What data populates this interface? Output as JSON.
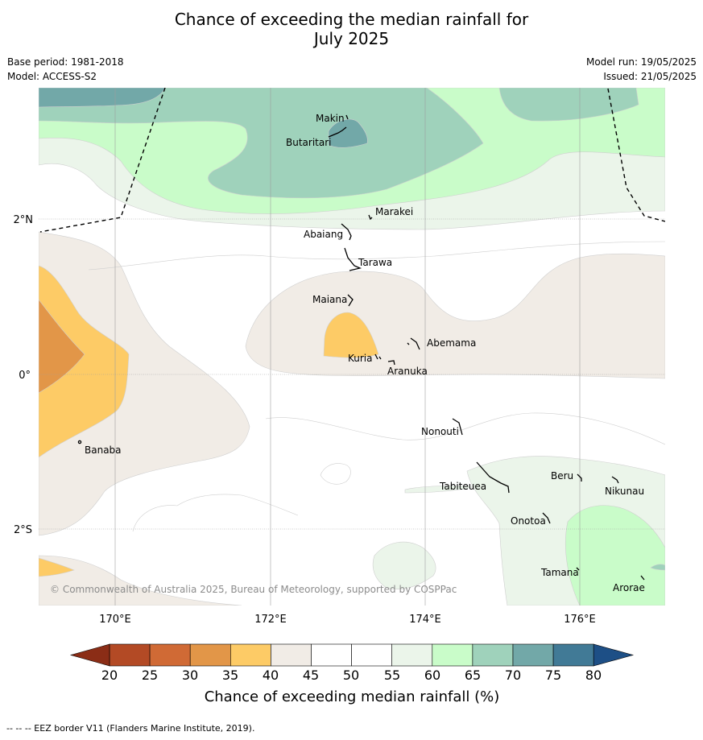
{
  "title_line1": "Chance of exceeding the median rainfall for",
  "title_line2": "July 2025",
  "base_period": "Base period: 1981-2018",
  "model": "Model: ACCESS-S2",
  "model_run": "Model run: 19/05/2025",
  "issued": "Issued: 21/05/2025",
  "copyright": "© Commonwealth of Australia 2025, Bureau of Meteorology, supported by COSPPac",
  "footer": "--  --  -- EEZ border V11 (Flanders Marine Institute, 2019).",
  "map": {
    "lon_labels": [
      "170°E",
      "172°E",
      "174°E",
      "176°E"
    ],
    "lat_labels": [
      "2°N",
      "0°",
      "2°S"
    ],
    "places": [
      {
        "name": "Makin"
      },
      {
        "name": "Butaritari"
      },
      {
        "name": "Marakei"
      },
      {
        "name": "Abaiang"
      },
      {
        "name": "Tarawa"
      },
      {
        "name": "Maiana"
      },
      {
        "name": "Abemama"
      },
      {
        "name": "Kuria"
      },
      {
        "name": "Aranuka"
      },
      {
        "name": "Nonouti"
      },
      {
        "name": "Banaba"
      },
      {
        "name": "Tabiteuea"
      },
      {
        "name": "Beru"
      },
      {
        "name": "Nikunau"
      },
      {
        "name": "Onotoa"
      },
      {
        "name": "Tamana"
      },
      {
        "name": "Arorae"
      }
    ]
  },
  "colorbar": {
    "label": "Chance of exceeding median rainfall (%)",
    "ticks": [
      "20",
      "25",
      "30",
      "35",
      "40",
      "45",
      "50",
      "55",
      "60",
      "65",
      "70",
      "75",
      "80"
    ],
    "colors": {
      "below20": "#8b2d16",
      "c20_25": "#b34a25",
      "c25_30": "#d06a35",
      "c30_35": "#e29648",
      "c35_40": "#fdcb66",
      "c40_45": "#f1ece6",
      "c45_55": "#ffffff",
      "c55_60": "#ebf5ea",
      "c60_65": "#c9fcc9",
      "c65_70": "#9fd2bb",
      "c70_75": "#72a8a8",
      "c75_80": "#417a96",
      "above80": "#1d4f86"
    }
  }
}
